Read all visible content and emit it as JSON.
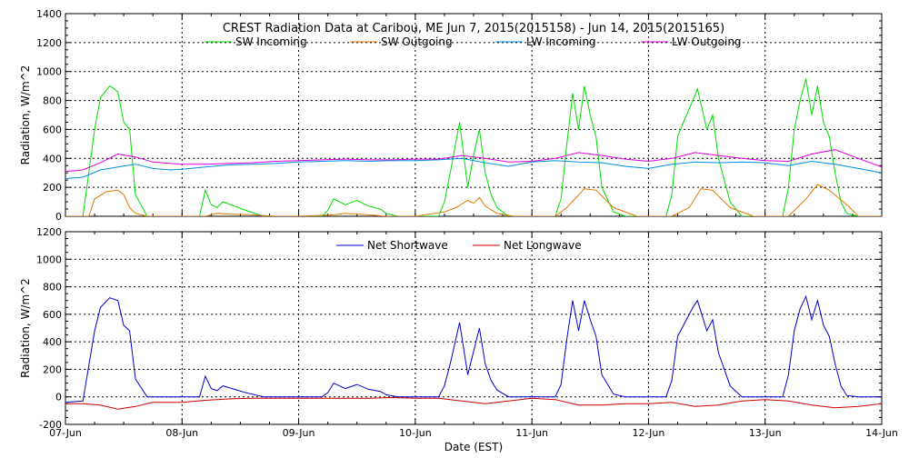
{
  "chart_data": [
    {
      "type": "line",
      "title": "CREST Radiation Data at Caribou, ME   Jun  7, 2015(2015158) - Jun 14, 2015(2015165)",
      "ylabel": "Radiation, W/m^2",
      "xlabel": "",
      "ylim": [
        0,
        1400
      ],
      "yticks": [
        0,
        200,
        400,
        600,
        800,
        1000,
        1200,
        1400
      ],
      "xlim": [
        0,
        7
      ],
      "grid": true,
      "legend_position": "top",
      "series": [
        {
          "name": "SW Incoming",
          "color": "#00dd00",
          "x": [
            0,
            0.15,
            0.25,
            0.3,
            0.38,
            0.45,
            0.5,
            0.55,
            0.6,
            0.7,
            0.8,
            1.05,
            1.15,
            1.2,
            1.25,
            1.3,
            1.35,
            1.45,
            1.55,
            1.7,
            1.9,
            2.2,
            2.25,
            2.3,
            2.35,
            2.4,
            2.5,
            2.6,
            2.7,
            2.75,
            2.85,
            3.0,
            3.2,
            3.25,
            3.3,
            3.38,
            3.45,
            3.5,
            3.55,
            3.6,
            3.65,
            3.7,
            3.8,
            3.9,
            4.0,
            4.2,
            4.25,
            4.3,
            4.35,
            4.4,
            4.45,
            4.5,
            4.55,
            4.6,
            4.7,
            4.8,
            5.0,
            5.15,
            5.2,
            5.25,
            5.3,
            5.38,
            5.42,
            5.5,
            5.55,
            5.6,
            5.7,
            5.8,
            6.0,
            6.15,
            6.2,
            6.25,
            6.3,
            6.35,
            6.4,
            6.45,
            6.5,
            6.55,
            6.6,
            6.65,
            6.7,
            6.8,
            7.0
          ],
          "values": [
            0,
            0,
            600,
            820,
            900,
            860,
            650,
            600,
            150,
            0,
            0,
            0,
            0,
            180,
            80,
            60,
            100,
            70,
            40,
            0,
            0,
            0,
            40,
            120,
            100,
            80,
            110,
            70,
            50,
            20,
            0,
            0,
            0,
            100,
            300,
            650,
            200,
            420,
            600,
            300,
            150,
            60,
            0,
            0,
            0,
            0,
            120,
            500,
            850,
            600,
            900,
            700,
            550,
            200,
            30,
            0,
            0,
            0,
            150,
            550,
            650,
            800,
            880,
            600,
            700,
            400,
            100,
            0,
            0,
            0,
            200,
            600,
            800,
            950,
            700,
            900,
            650,
            550,
            300,
            100,
            20,
            0,
            0
          ]
        },
        {
          "name": "SW Outgoing",
          "color": "#e07800",
          "x": [
            0,
            0.2,
            0.25,
            0.35,
            0.45,
            0.5,
            0.55,
            0.6,
            0.7,
            1.0,
            1.2,
            1.3,
            1.4,
            1.6,
            1.8,
            2.0,
            2.3,
            2.4,
            2.5,
            2.6,
            2.75,
            3.0,
            3.25,
            3.35,
            3.45,
            3.5,
            3.55,
            3.6,
            3.7,
            3.85,
            4.0,
            4.2,
            4.3,
            4.45,
            4.55,
            4.7,
            4.9,
            5.2,
            5.35,
            5.45,
            5.55,
            5.7,
            5.9,
            6.2,
            6.35,
            6.45,
            6.55,
            6.7,
            6.8,
            7.0
          ],
          "values": [
            0,
            0,
            120,
            170,
            180,
            150,
            60,
            20,
            0,
            0,
            0,
            20,
            15,
            10,
            0,
            0,
            10,
            20,
            15,
            10,
            0,
            0,
            30,
            60,
            110,
            90,
            130,
            70,
            20,
            0,
            0,
            0,
            60,
            190,
            180,
            60,
            0,
            0,
            60,
            190,
            180,
            60,
            0,
            0,
            120,
            220,
            180,
            80,
            0,
            0
          ]
        },
        {
          "name": "LW Incoming",
          "color": "#0090e0",
          "x": [
            0,
            0.15,
            0.3,
            0.45,
            0.6,
            0.75,
            0.9,
            1.0,
            1.2,
            1.4,
            1.6,
            1.8,
            2.0,
            2.2,
            2.4,
            2.6,
            2.8,
            3.0,
            3.2,
            3.4,
            3.6,
            3.8,
            4.0,
            4.2,
            4.4,
            4.6,
            4.8,
            5.0,
            5.2,
            5.4,
            5.6,
            5.8,
            6.0,
            6.2,
            6.4,
            6.6,
            6.8,
            7.0
          ],
          "values": [
            260,
            270,
            320,
            340,
            360,
            330,
            320,
            325,
            340,
            355,
            360,
            365,
            375,
            380,
            385,
            380,
            385,
            385,
            390,
            400,
            370,
            345,
            375,
            385,
            375,
            370,
            345,
            330,
            360,
            375,
            370,
            375,
            370,
            350,
            380,
            360,
            330,
            300
          ]
        },
        {
          "name": "LW Outgoing",
          "color": "#dd00dd",
          "x": [
            0,
            0.15,
            0.3,
            0.45,
            0.6,
            0.75,
            0.9,
            1.0,
            1.2,
            1.4,
            1.6,
            1.8,
            2.0,
            2.2,
            2.4,
            2.6,
            2.8,
            3.0,
            3.2,
            3.4,
            3.6,
            3.8,
            4.0,
            4.2,
            4.4,
            4.6,
            4.8,
            5.0,
            5.2,
            5.4,
            5.6,
            5.8,
            6.0,
            6.2,
            6.4,
            6.6,
            6.8,
            7.0
          ],
          "values": [
            310,
            320,
            370,
            430,
            410,
            375,
            365,
            360,
            360,
            365,
            370,
            380,
            385,
            390,
            395,
            390,
            390,
            395,
            395,
            420,
            400,
            375,
            380,
            400,
            440,
            420,
            395,
            380,
            400,
            440,
            420,
            400,
            385,
            380,
            430,
            460,
            400,
            340
          ]
        }
      ]
    },
    {
      "type": "line",
      "ylabel": "Radiation, W/m^2",
      "xlabel": "Date (EST)",
      "ylim": [
        -200,
        1200
      ],
      "yticks": [
        -200,
        0,
        200,
        400,
        600,
        800,
        1000,
        1200
      ],
      "xlim": [
        0,
        7
      ],
      "xtick_labels": [
        "07-Jun",
        "08-Jun",
        "09-Jun",
        "10-Jun",
        "11-Jun",
        "12-Jun",
        "13-Jun",
        "14-Jun"
      ],
      "grid": true,
      "legend_position": "top",
      "series": [
        {
          "name": "Net Shortwave",
          "color": "#0000cc",
          "x": [
            0,
            0.15,
            0.25,
            0.3,
            0.38,
            0.45,
            0.5,
            0.55,
            0.6,
            0.7,
            0.8,
            1.05,
            1.15,
            1.2,
            1.25,
            1.3,
            1.35,
            1.45,
            1.55,
            1.7,
            1.9,
            2.2,
            2.25,
            2.3,
            2.35,
            2.4,
            2.5,
            2.6,
            2.7,
            2.75,
            2.85,
            3.0,
            3.2,
            3.25,
            3.3,
            3.38,
            3.45,
            3.5,
            3.55,
            3.6,
            3.65,
            3.7,
            3.8,
            3.9,
            4.0,
            4.2,
            4.25,
            4.3,
            4.35,
            4.4,
            4.45,
            4.5,
            4.55,
            4.6,
            4.7,
            4.8,
            5.0,
            5.15,
            5.2,
            5.25,
            5.3,
            5.38,
            5.42,
            5.5,
            5.55,
            5.6,
            5.7,
            5.8,
            6.0,
            6.15,
            6.2,
            6.25,
            6.3,
            6.35,
            6.4,
            6.45,
            6.5,
            6.55,
            6.6,
            6.65,
            6.7,
            6.8,
            7.0
          ],
          "values": [
            -40,
            -30,
            480,
            650,
            720,
            700,
            520,
            480,
            130,
            0,
            0,
            0,
            0,
            150,
            60,
            45,
            80,
            55,
            30,
            0,
            0,
            0,
            30,
            100,
            80,
            60,
            90,
            55,
            40,
            15,
            0,
            0,
            0,
            80,
            240,
            540,
            160,
            330,
            500,
            240,
            120,
            50,
            0,
            0,
            0,
            0,
            90,
            420,
            700,
            480,
            700,
            560,
            440,
            160,
            20,
            0,
            0,
            0,
            120,
            440,
            520,
            650,
            700,
            480,
            560,
            320,
            80,
            0,
            0,
            0,
            160,
            480,
            640,
            730,
            560,
            700,
            520,
            440,
            240,
            80,
            10,
            0,
            0
          ]
        },
        {
          "name": "Net Longwave",
          "color": "#cc0000",
          "x": [
            0,
            0.15,
            0.3,
            0.45,
            0.6,
            0.75,
            0.9,
            1.0,
            1.2,
            1.4,
            1.6,
            1.8,
            2.0,
            2.2,
            2.4,
            2.6,
            2.8,
            3.0,
            3.2,
            3.4,
            3.6,
            3.8,
            4.0,
            4.2,
            4.4,
            4.6,
            4.8,
            5.0,
            5.2,
            5.4,
            5.6,
            5.8,
            6.0,
            6.2,
            6.4,
            6.6,
            6.8,
            7.0
          ],
          "values": [
            -50,
            -50,
            -60,
            -90,
            -70,
            -40,
            -40,
            -40,
            -25,
            -15,
            -10,
            -10,
            -10,
            -10,
            -10,
            -10,
            -5,
            -10,
            -10,
            -30,
            -50,
            -30,
            -10,
            -20,
            -60,
            -60,
            -50,
            -50,
            -40,
            -70,
            -60,
            -30,
            -20,
            -30,
            -60,
            -80,
            -70,
            -50
          ]
        }
      ]
    }
  ]
}
